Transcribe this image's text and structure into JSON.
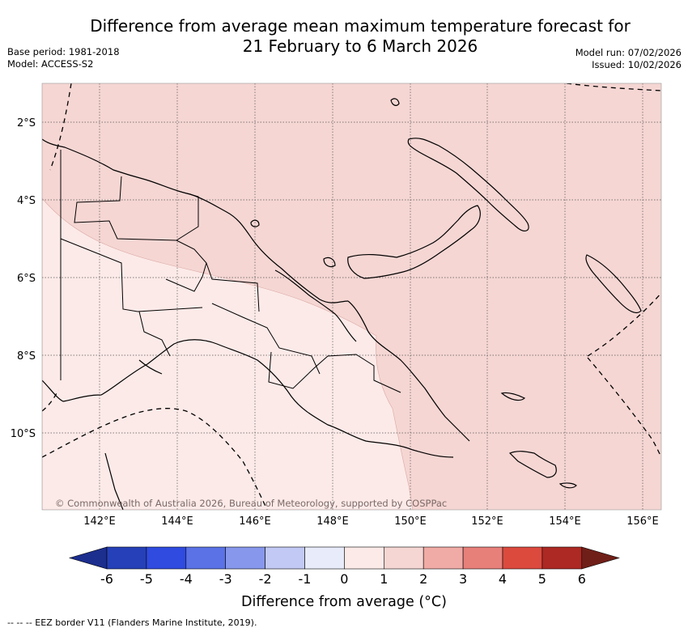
{
  "title": {
    "line1": "Difference from average mean maximum temperature forecast for",
    "line2": "21 February to 6 March 2026"
  },
  "meta_left": {
    "line1": "Base period: 1981-2018",
    "line2": "Model: ACCESS-S2"
  },
  "meta_right": {
    "line1": "Model run: 07/02/2026",
    "line2": "Issued: 10/02/2026"
  },
  "map": {
    "lat_labels": [
      "2°S",
      "4°S",
      "6°S",
      "8°S",
      "10°S"
    ],
    "lon_labels": [
      "142°E",
      "144°E",
      "146°E",
      "148°E",
      "150°E",
      "152°E",
      "154°E",
      "156°E"
    ],
    "lon_range": [
      140.6,
      156.5
    ],
    "lat_range": [
      -12.0,
      -1.0
    ],
    "gridlines": true,
    "attribution": "© Commonwealth of Australia 2026, Bureau of Meteorology, supported by COSPPac",
    "regions": [
      {
        "category": "1 to 2",
        "color": "#f5d6d3"
      },
      {
        "category": "0 to 1",
        "color": "#fceae8"
      }
    ]
  },
  "colorbar": {
    "label": "Difference from average (°C)",
    "ticks": [
      "-6",
      "-5",
      "-4",
      "-3",
      "-2",
      "-1",
      "0",
      "1",
      "2",
      "3",
      "4",
      "5",
      "6"
    ],
    "colors": [
      "#1c2e8e",
      "#2540b8",
      "#2f4be0",
      "#5a72e6",
      "#8797ec",
      "#c2c9f4",
      "#e8ebfa",
      "#fceae8",
      "#f5d6d3",
      "#f0aba6",
      "#e8807a",
      "#dc4a3e",
      "#ad2923",
      "#701f18"
    ]
  },
  "footer": "-- -- -- EEZ border V11 (Flanders Marine Institute, 2019)."
}
